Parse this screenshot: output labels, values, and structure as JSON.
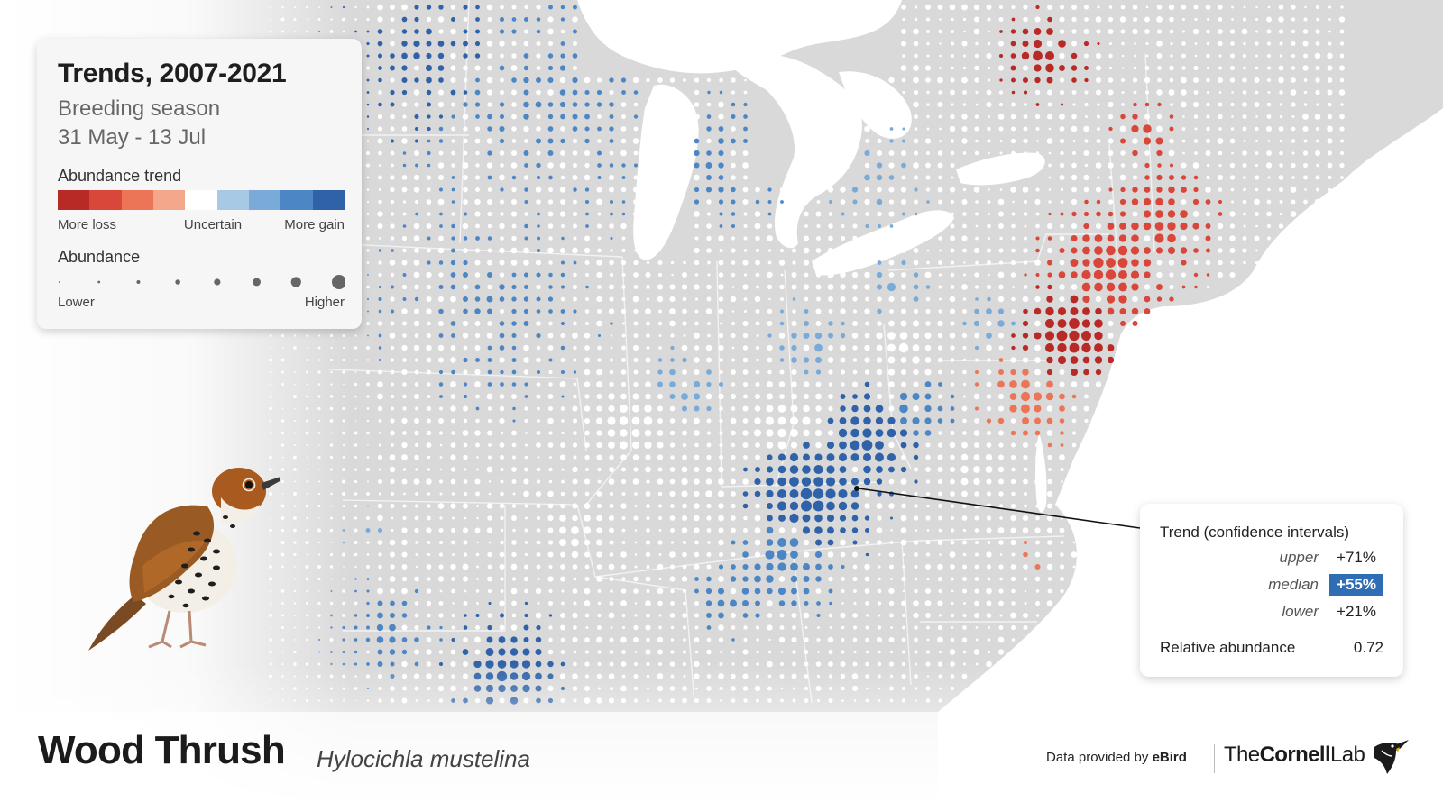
{
  "legend": {
    "title": "Trends, 2007-2021",
    "season": "Breeding season",
    "dates": "31 May - 13 Jul",
    "trend_heading": "Abundance trend",
    "trend_colors": [
      "#b82a25",
      "#d8473a",
      "#ec7558",
      "#f3a78b",
      "#ffffff",
      "#a8c9e6",
      "#79aad8",
      "#4c86c5",
      "#2f62a8"
    ],
    "trend_low_label": "More loss",
    "trend_mid_label": "Uncertain",
    "trend_high_label": "More gain",
    "abundance_heading": "Abundance",
    "abundance_low_label": "Lower",
    "abundance_high_label": "Higher"
  },
  "tooltip": {
    "title": "Trend (confidence intervals)",
    "upper_label": "upper",
    "upper_value": "+71%",
    "median_label": "median",
    "median_value": "+55%",
    "lower_label": "lower",
    "lower_value": "+21%",
    "relative_label": "Relative abundance",
    "relative_value": "0.72"
  },
  "species": {
    "common_name": "Wood Thrush",
    "scientific_name": "Hylocichla mustelina"
  },
  "credit": {
    "text": "Data provided by ",
    "source": "eBird",
    "org_light": "The",
    "org_bold": "Cornell",
    "org_end": "Lab"
  },
  "colors": {
    "land": "#d9d9d9",
    "water": "#ffffff",
    "accent_median": "#2f6db5"
  },
  "icons": {
    "bird": "wood-thrush-illustration",
    "logo": "cornell-lab-bird-logo"
  }
}
